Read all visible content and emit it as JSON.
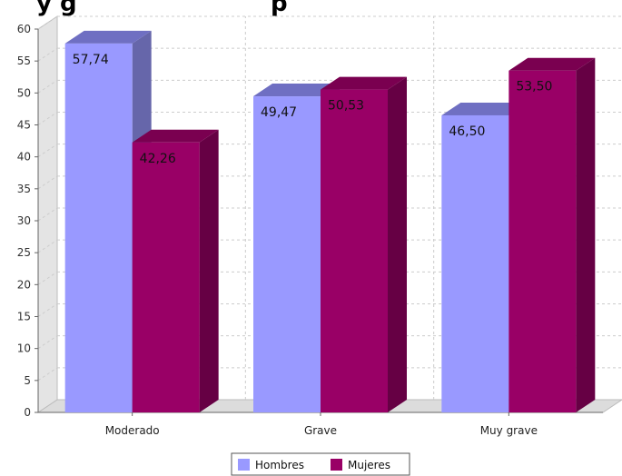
{
  "chart_data": {
    "type": "bar",
    "title": "y g",
    "title_fragment_right": "p",
    "categories": [
      "Moderado",
      "Grave",
      "Muy grave"
    ],
    "series": [
      {
        "name": "Hombres",
        "values": [
          57.74,
          49.47,
          46.5
        ],
        "labels": [
          "57,74",
          "49,47",
          "46,50"
        ],
        "color": "#9999ff",
        "shade_top": "#6f6fc2",
        "shade_side": "#6666aa"
      },
      {
        "name": "Mujeres",
        "values": [
          42.26,
          50.53,
          53.5
        ],
        "labels": [
          "42,26",
          "50,53",
          "53,50"
        ],
        "color": "#990066",
        "shade_top": "#7a0050",
        "shade_side": "#660044"
      }
    ],
    "ylim": [
      0,
      60
    ],
    "yticks": [
      0,
      5,
      10,
      15,
      20,
      25,
      30,
      35,
      40,
      45,
      50,
      55,
      60
    ],
    "xlabel": "",
    "ylabel": "",
    "grid": true,
    "legend_position": "bottom-center",
    "three_d": true
  }
}
